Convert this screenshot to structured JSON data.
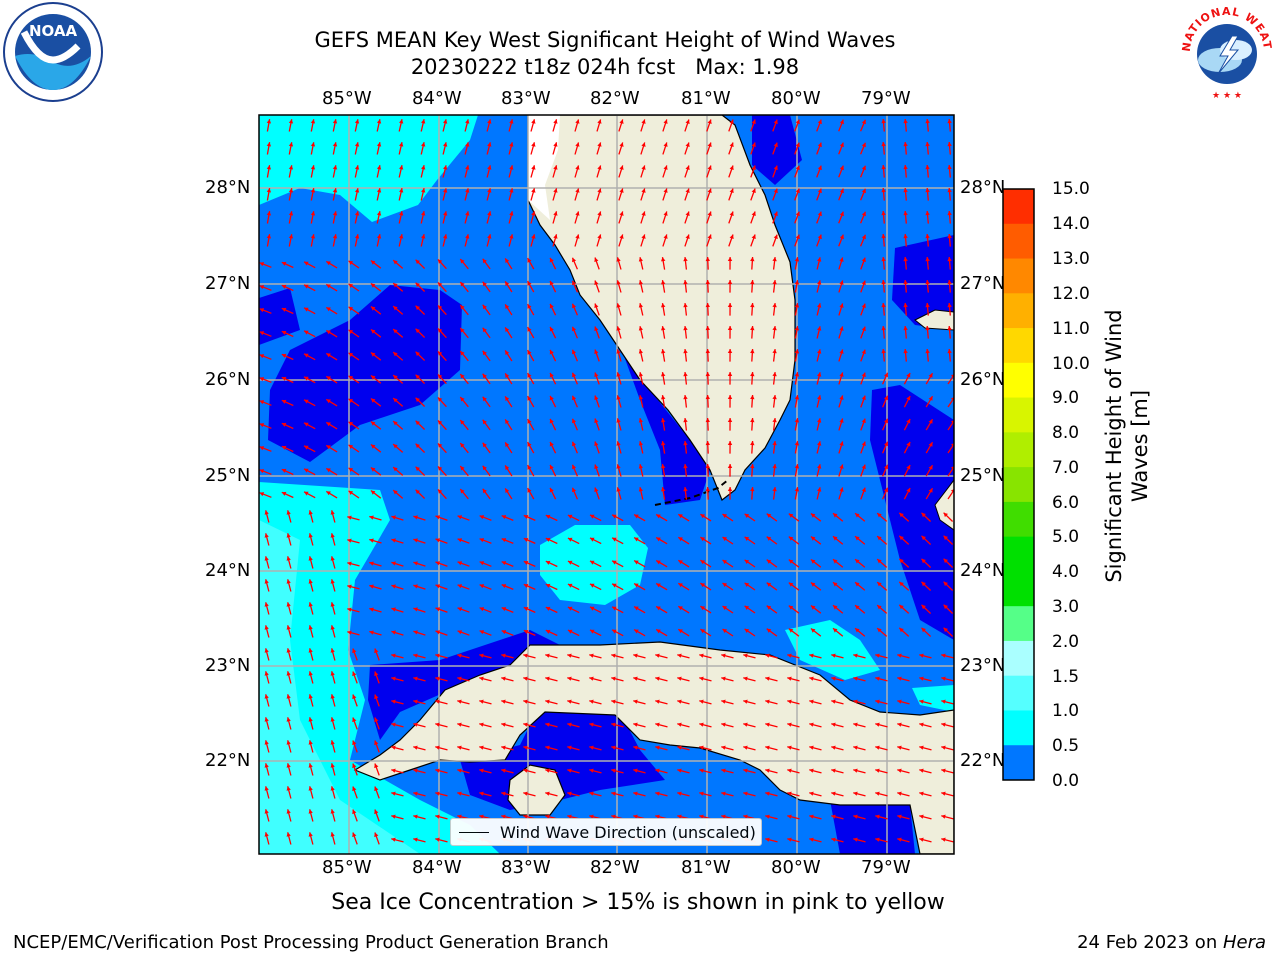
{
  "title": {
    "line1": "GEFS MEAN Key West Significant Height of Wind Waves",
    "line2": "20230222 t18z 024h fcst   Max: 1.98"
  },
  "map": {
    "lon_labels": [
      "85°W",
      "84°W",
      "83°W",
      "82°W",
      "81°W",
      "80°W",
      "79°W"
    ],
    "lat_labels": [
      "28°N",
      "27°N",
      "26°N",
      "25°N",
      "24°N",
      "23°N",
      "22°N"
    ],
    "legend_text": "Wind Wave Direction (unscaled)",
    "colors": {
      "ocean_0_0.5": "#0000ee",
      "ocean_0.5_1.0": "#0077ff",
      "ocean_1.0_1.5": "#00ffff",
      "ocean_1.5_2.0": "#40ffff",
      "land": "#efeedb",
      "arrow": "#ff0000",
      "grid": "#b0b0b0"
    }
  },
  "colorbar": {
    "label": "Significant Height of Wind Waves [m]",
    "ticks": [
      "15.0",
      "14.0",
      "13.0",
      "12.0",
      "11.0",
      "10.0",
      "9.0",
      "8.0",
      "7.0",
      "6.0",
      "5.0",
      "4.0",
      "3.0",
      "2.0",
      "1.5",
      "1.0",
      "0.5",
      "0.0"
    ],
    "colors": [
      "#ff0000",
      "#ff2e00",
      "#ff5c00",
      "#ff8800",
      "#ffb000",
      "#ffd800",
      "#ffff00",
      "#d8f500",
      "#b0ee00",
      "#88e400",
      "#40dd00",
      "#00e000",
      "#00e000",
      "#55ff88",
      "#aaffff",
      "#55ffff",
      "#00ffff",
      "#0077ff",
      "#0000ee"
    ]
  },
  "note": "Sea Ice Concentration > 15% is shown in pink to yellow",
  "footer": {
    "left": "NCEP/EMC/Verification Post Processing Product Generation Branch",
    "right_prefix": "24 Feb 2023 on ",
    "right_host": "Hera"
  },
  "logos": {
    "noaa_text": "NOAA",
    "nws_text": "NATIONAL WEATHER SERVICE"
  }
}
